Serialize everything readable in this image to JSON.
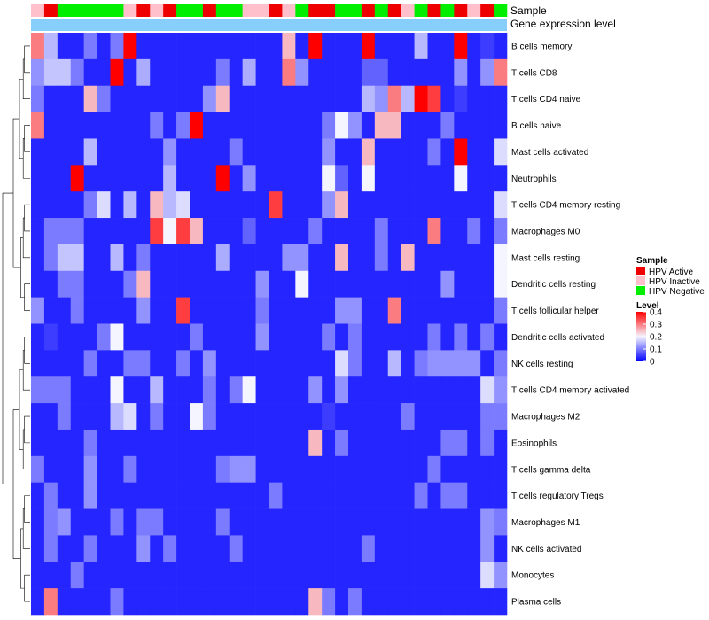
{
  "chart_data": {
    "type": "heatmap",
    "track_labels": [
      "Sample",
      "Gene expression level"
    ],
    "row_labels": [
      "B cells memory",
      "T cells CD8",
      "T cells CD4 naive",
      "B cells naive",
      "Mast cells activated",
      "Neutrophils",
      "T cells CD4 memory resting",
      "Macrophages M0",
      "Mast cells resting",
      "Dendritic cells resting",
      "T cells follicular helper",
      "Dendritic cells activated",
      "NK cells resting",
      "T cells CD4 memory activated",
      "Macrophages M2",
      "Eosinophils",
      "T cells gamma delta",
      "T cells regulatory  Tregs",
      "Macrophages M1",
      "NK cells activated",
      "Monocytes",
      "Plasma cells"
    ],
    "samples": [
      "Inactive",
      "Active",
      "Negative",
      "Negative",
      "Negative",
      "Negative",
      "Negative",
      "Inactive",
      "Active",
      "Inactive",
      "Active",
      "Negative",
      "Negative",
      "Active",
      "Negative",
      "Negative",
      "Inactive",
      "Inactive",
      "Active",
      "Inactive",
      "Negative",
      "Active",
      "Active",
      "Negative",
      "Negative",
      "Active",
      "Negative",
      "Active",
      "Inactive",
      "Negative",
      "Active",
      "Negative",
      "Active",
      "Inactive",
      "Active",
      "Negative"
    ],
    "values": [
      [
        0.3,
        0.15,
        0.03,
        0.03,
        0.1,
        0.03,
        0.1,
        0.4,
        0.03,
        0.03,
        0.03,
        0.03,
        0.03,
        0.03,
        0.03,
        0.03,
        0.03,
        0.03,
        0.03,
        0.25,
        0.03,
        0.4,
        0.03,
        0.03,
        0.03,
        0.4,
        0.03,
        0.03,
        0.03,
        0.15,
        0.03,
        0.03,
        0.4,
        0.03,
        0.05,
        0.03
      ],
      [
        0.12,
        0.16,
        0.16,
        0.1,
        0.03,
        0.03,
        0.4,
        0.03,
        0.14,
        0.03,
        0.03,
        0.03,
        0.03,
        0.03,
        0.1,
        0.03,
        0.14,
        0.03,
        0.03,
        0.3,
        0.12,
        0.03,
        0.03,
        0.03,
        0.03,
        0.08,
        0.08,
        0.03,
        0.03,
        0.03,
        0.03,
        0.03,
        0.12,
        0.03,
        0.12,
        0.3
      ],
      [
        0.1,
        0.03,
        0.03,
        0.03,
        0.25,
        0.1,
        0.03,
        0.03,
        0.03,
        0.03,
        0.03,
        0.03,
        0.03,
        0.12,
        0.25,
        0.03,
        0.03,
        0.03,
        0.03,
        0.03,
        0.03,
        0.03,
        0.03,
        0.03,
        0.03,
        0.15,
        0.12,
        0.3,
        0.15,
        0.4,
        0.35,
        0.03,
        0.05,
        0.03,
        0.03,
        0.03
      ],
      [
        0.3,
        0.03,
        0.03,
        0.03,
        0.03,
        0.03,
        0.03,
        0.03,
        0.03,
        0.1,
        0.03,
        0.1,
        0.4,
        0.03,
        0.03,
        0.03,
        0.03,
        0.03,
        0.03,
        0.03,
        0.03,
        0.03,
        0.1,
        0.2,
        0.12,
        0.03,
        0.25,
        0.25,
        0.03,
        0.03,
        0.03,
        0.1,
        0.03,
        0.03,
        0.03,
        0.03
      ],
      [
        0.03,
        0.03,
        0.03,
        0.03,
        0.15,
        0.03,
        0.03,
        0.03,
        0.03,
        0.03,
        0.12,
        0.03,
        0.03,
        0.03,
        0.03,
        0.1,
        0.03,
        0.03,
        0.03,
        0.03,
        0.03,
        0.03,
        0.12,
        0.03,
        0.03,
        0.25,
        0.03,
        0.03,
        0.03,
        0.03,
        0.1,
        0.03,
        0.4,
        0.03,
        0.03,
        0.18
      ],
      [
        0.03,
        0.03,
        0.03,
        0.4,
        0.03,
        0.03,
        0.03,
        0.03,
        0.03,
        0.03,
        0.15,
        0.03,
        0.03,
        0.03,
        0.4,
        0.03,
        0.12,
        0.03,
        0.03,
        0.03,
        0.03,
        0.03,
        0.2,
        0.08,
        0.03,
        0.2,
        0.03,
        0.03,
        0.03,
        0.03,
        0.03,
        0.03,
        0.2,
        0.03,
        0.03,
        0.03
      ],
      [
        0.03,
        0.03,
        0.03,
        0.03,
        0.1,
        0.18,
        0.03,
        0.15,
        0.03,
        0.25,
        0.15,
        0.18,
        0.03,
        0.03,
        0.03,
        0.03,
        0.03,
        0.03,
        0.35,
        0.03,
        0.03,
        0.03,
        0.12,
        0.25,
        0.03,
        0.03,
        0.03,
        0.03,
        0.03,
        0.03,
        0.03,
        0.03,
        0.03,
        0.03,
        0.03,
        0.18
      ],
      [
        0.03,
        0.1,
        0.1,
        0.1,
        0.03,
        0.03,
        0.03,
        0.03,
        0.03,
        0.35,
        0.2,
        0.35,
        0.25,
        0.03,
        0.03,
        0.03,
        0.08,
        0.03,
        0.03,
        0.03,
        0.03,
        0.1,
        0.03,
        0.03,
        0.03,
        0.03,
        0.1,
        0.03,
        0.03,
        0.03,
        0.3,
        0.03,
        0.03,
        0.1,
        0.03,
        0.1
      ],
      [
        0.03,
        0.1,
        0.16,
        0.16,
        0.03,
        0.03,
        0.15,
        0.03,
        0.1,
        0.03,
        0.03,
        0.03,
        0.03,
        0.03,
        0.14,
        0.03,
        0.03,
        0.03,
        0.03,
        0.12,
        0.12,
        0.03,
        0.03,
        0.25,
        0.03,
        0.03,
        0.1,
        0.03,
        0.25,
        0.03,
        0.03,
        0.03,
        0.03,
        0.03,
        0.03,
        0.2
      ],
      [
        0.03,
        0.03,
        0.1,
        0.1,
        0.03,
        0.03,
        0.03,
        0.1,
        0.25,
        0.03,
        0.03,
        0.03,
        0.03,
        0.03,
        0.03,
        0.03,
        0.03,
        0.12,
        0.03,
        0.03,
        0.2,
        0.03,
        0.03,
        0.03,
        0.03,
        0.03,
        0.03,
        0.03,
        0.03,
        0.03,
        0.03,
        0.12,
        0.03,
        0.03,
        0.03,
        0.2
      ],
      [
        0.12,
        0.03,
        0.03,
        0.1,
        0.03,
        0.03,
        0.03,
        0.03,
        0.12,
        0.03,
        0.03,
        0.35,
        0.03,
        0.03,
        0.03,
        0.03,
        0.03,
        0.1,
        0.03,
        0.03,
        0.03,
        0.03,
        0.03,
        0.12,
        0.12,
        0.03,
        0.03,
        0.3,
        0.03,
        0.03,
        0.03,
        0.03,
        0.03,
        0.03,
        0.03,
        0.1
      ],
      [
        0.03,
        0.05,
        0.03,
        0.03,
        0.03,
        0.1,
        0.2,
        0.03,
        0.03,
        0.03,
        0.03,
        0.03,
        0.1,
        0.03,
        0.03,
        0.03,
        0.03,
        0.12,
        0.03,
        0.03,
        0.03,
        0.03,
        0.1,
        0.03,
        0.1,
        0.03,
        0.03,
        0.03,
        0.03,
        0.03,
        0.1,
        0.03,
        0.1,
        0.03,
        0.1,
        0.03
      ],
      [
        0.03,
        0.03,
        0.03,
        0.03,
        0.1,
        0.03,
        0.03,
        0.1,
        0.1,
        0.03,
        0.03,
        0.1,
        0.03,
        0.12,
        0.03,
        0.03,
        0.03,
        0.03,
        0.03,
        0.03,
        0.03,
        0.03,
        0.03,
        0.18,
        0.1,
        0.03,
        0.03,
        0.15,
        0.03,
        0.1,
        0.12,
        0.12,
        0.12,
        0.12,
        0.03,
        0.1
      ],
      [
        0.1,
        0.1,
        0.1,
        0.03,
        0.03,
        0.03,
        0.2,
        0.03,
        0.03,
        0.15,
        0.03,
        0.03,
        0.03,
        0.1,
        0.03,
        0.1,
        0.2,
        0.03,
        0.03,
        0.03,
        0.03,
        0.12,
        0.03,
        0.12,
        0.03,
        0.03,
        0.03,
        0.03,
        0.03,
        0.03,
        0.03,
        0.03,
        0.03,
        0.03,
        0.18,
        0.12
      ],
      [
        0.03,
        0.03,
        0.1,
        0.03,
        0.03,
        0.03,
        0.15,
        0.18,
        0.03,
        0.1,
        0.03,
        0.03,
        0.2,
        0.1,
        0.03,
        0.03,
        0.03,
        0.03,
        0.03,
        0.03,
        0.03,
        0.03,
        0.05,
        0.03,
        0.03,
        0.03,
        0.03,
        0.03,
        0.1,
        0.03,
        0.03,
        0.03,
        0.03,
        0.03,
        0.1,
        0.1
      ],
      [
        0.03,
        0.03,
        0.03,
        0.03,
        0.1,
        0.03,
        0.03,
        0.03,
        0.03,
        0.03,
        0.03,
        0.03,
        0.03,
        0.03,
        0.03,
        0.03,
        0.03,
        0.03,
        0.03,
        0.03,
        0.03,
        0.25,
        0.03,
        0.1,
        0.03,
        0.03,
        0.03,
        0.03,
        0.03,
        0.03,
        0.03,
        0.1,
        0.1,
        0.03,
        0.1,
        0.03
      ],
      [
        0.1,
        0.03,
        0.03,
        0.03,
        0.12,
        0.03,
        0.03,
        0.1,
        0.03,
        0.03,
        0.03,
        0.03,
        0.03,
        0.03,
        0.1,
        0.12,
        0.12,
        0.03,
        0.03,
        0.03,
        0.03,
        0.03,
        0.03,
        0.03,
        0.03,
        0.03,
        0.03,
        0.03,
        0.03,
        0.03,
        0.1,
        0.03,
        0.03,
        0.03,
        0.03,
        0.03
      ],
      [
        0.03,
        0.1,
        0.03,
        0.03,
        0.12,
        0.03,
        0.03,
        0.03,
        0.03,
        0.03,
        0.03,
        0.03,
        0.03,
        0.03,
        0.03,
        0.03,
        0.03,
        0.03,
        0.1,
        0.03,
        0.03,
        0.03,
        0.03,
        0.03,
        0.03,
        0.03,
        0.03,
        0.03,
        0.03,
        0.1,
        0.03,
        0.1,
        0.1,
        0.03,
        0.03,
        0.03
      ],
      [
        0.03,
        0.1,
        0.12,
        0.03,
        0.03,
        0.03,
        0.1,
        0.03,
        0.1,
        0.1,
        0.03,
        0.03,
        0.03,
        0.03,
        0.1,
        0.03,
        0.03,
        0.03,
        0.03,
        0.03,
        0.03,
        0.03,
        0.03,
        0.03,
        0.03,
        0.03,
        0.03,
        0.03,
        0.03,
        0.03,
        0.03,
        0.03,
        0.03,
        0.03,
        0.12,
        0.1
      ],
      [
        0.03,
        0.1,
        0.03,
        0.03,
        0.1,
        0.03,
        0.03,
        0.03,
        0.12,
        0.03,
        0.1,
        0.03,
        0.03,
        0.03,
        0.03,
        0.1,
        0.03,
        0.03,
        0.03,
        0.03,
        0.03,
        0.03,
        0.03,
        0.03,
        0.03,
        0.1,
        0.03,
        0.03,
        0.03,
        0.03,
        0.03,
        0.03,
        0.03,
        0.03,
        0.12,
        0.03
      ],
      [
        0.03,
        0.03,
        0.03,
        0.1,
        0.03,
        0.03,
        0.03,
        0.03,
        0.03,
        0.03,
        0.03,
        0.03,
        0.03,
        0.03,
        0.03,
        0.03,
        0.03,
        0.03,
        0.03,
        0.03,
        0.03,
        0.03,
        0.03,
        0.03,
        0.03,
        0.03,
        0.03,
        0.03,
        0.03,
        0.03,
        0.03,
        0.03,
        0.03,
        0.03,
        0.18,
        0.12
      ],
      [
        0.03,
        0.3,
        0.03,
        0.03,
        0.03,
        0.03,
        0.1,
        0.03,
        0.03,
        0.03,
        0.03,
        0.03,
        0.03,
        0.03,
        0.03,
        0.03,
        0.03,
        0.03,
        0.03,
        0.03,
        0.03,
        0.25,
        0.1,
        0.03,
        0.1,
        0.03,
        0.03,
        0.03,
        0.03,
        0.03,
        0.03,
        0.03,
        0.03,
        0.03,
        0.03,
        0.03
      ]
    ],
    "sample_legend": {
      "title": "Sample",
      "items": [
        {
          "key": "Active",
          "label": "HPV Active",
          "color": "#ee0000"
        },
        {
          "key": "Inactive",
          "label": "HPV Inactive",
          "color": "#ffc0cb"
        },
        {
          "key": "Negative",
          "label": "HPV Negative",
          "color": "#00ee00"
        }
      ]
    },
    "level_legend": {
      "title": "Level",
      "min": 0,
      "max": 0.4,
      "ticks": [
        "0.4",
        "0.3",
        "0.2",
        "0.1",
        "0"
      ],
      "colors": {
        "low": "#0000ff",
        "mid": "#f5f5ff",
        "high": "#ff0000"
      }
    },
    "expression_bar_color": "#87cefa"
  }
}
